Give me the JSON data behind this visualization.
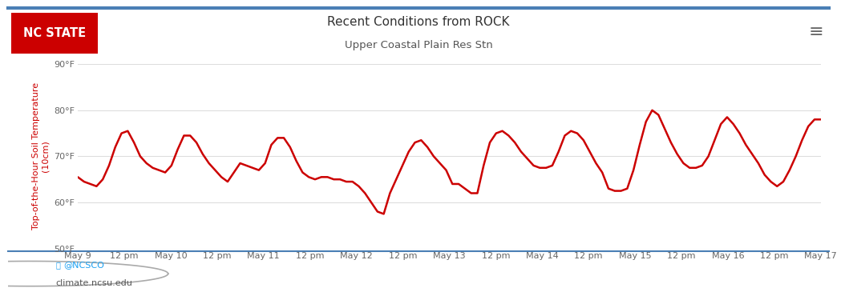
{
  "title": "Recent Conditions from ROCK",
  "subtitle": "Upper Coastal Plain Res Stn",
  "ylabel": "Top-of-the-Hour Soil Temperature\n(10cm)",
  "ylim": [
    50,
    90
  ],
  "yticks": [
    50,
    60,
    70,
    80,
    90
  ],
  "ytick_labels": [
    "50°F",
    "60°F",
    "70°F",
    "80°F",
    "90°F"
  ],
  "line_color": "#cc0000",
  "line_width": 1.8,
  "bg_color": "#ffffff",
  "outer_bg": "#ffffff",
  "grid_color": "#dddddd",
  "title_color": "#333333",
  "ylabel_color": "#cc0000",
  "nc_state_bg": "#cc0000",
  "nc_state_text": "#ffffff",
  "footer_text1": "@NCSCO",
  "footer_text2": "climate.ncsu.edu",
  "border_color": "#4a7fb5",
  "x_tick_labels": [
    "May 9",
    "12 pm",
    "May 10",
    "12 pm",
    "May 11",
    "12 pm",
    "May 12",
    "12 pm",
    "May 13",
    "12 pm",
    "May 14",
    "12 pm",
    "May 15",
    "12 pm",
    "May 16",
    "12 pm",
    "May 17"
  ],
  "data_y": [
    65.5,
    64.5,
    64.0,
    63.5,
    65.0,
    68.0,
    72.0,
    75.0,
    75.5,
    73.0,
    70.0,
    68.5,
    67.5,
    67.0,
    66.5,
    68.0,
    71.5,
    74.5,
    74.5,
    73.0,
    70.5,
    68.5,
    67.0,
    65.5,
    64.5,
    66.5,
    68.5,
    68.0,
    67.5,
    67.0,
    68.5,
    72.5,
    74.0,
    74.0,
    72.0,
    69.0,
    66.5,
    65.5,
    65.0,
    65.5,
    65.5,
    65.0,
    65.0,
    64.5,
    64.5,
    63.5,
    62.0,
    60.0,
    58.0,
    57.5,
    62.0,
    65.0,
    68.0,
    71.0,
    73.0,
    73.5,
    72.0,
    70.0,
    68.5,
    67.0,
    64.0,
    64.0,
    63.0,
    62.0,
    62.0,
    68.0,
    73.0,
    75.0,
    75.5,
    74.5,
    73.0,
    71.0,
    69.5,
    68.0,
    67.5,
    67.5,
    68.0,
    71.0,
    74.5,
    75.5,
    75.0,
    73.5,
    71.0,
    68.5,
    66.5,
    63.0,
    62.5,
    62.5,
    63.0,
    67.0,
    72.5,
    77.5,
    80.0,
    79.0,
    76.0,
    73.0,
    70.5,
    68.5,
    67.5,
    67.5,
    68.0,
    70.0,
    73.5,
    77.0,
    78.5,
    77.0,
    75.0,
    72.5,
    70.5,
    68.5,
    66.0,
    64.5,
    63.5,
    64.5,
    67.0,
    70.0,
    73.5,
    76.5,
    78.0,
    78.0
  ]
}
